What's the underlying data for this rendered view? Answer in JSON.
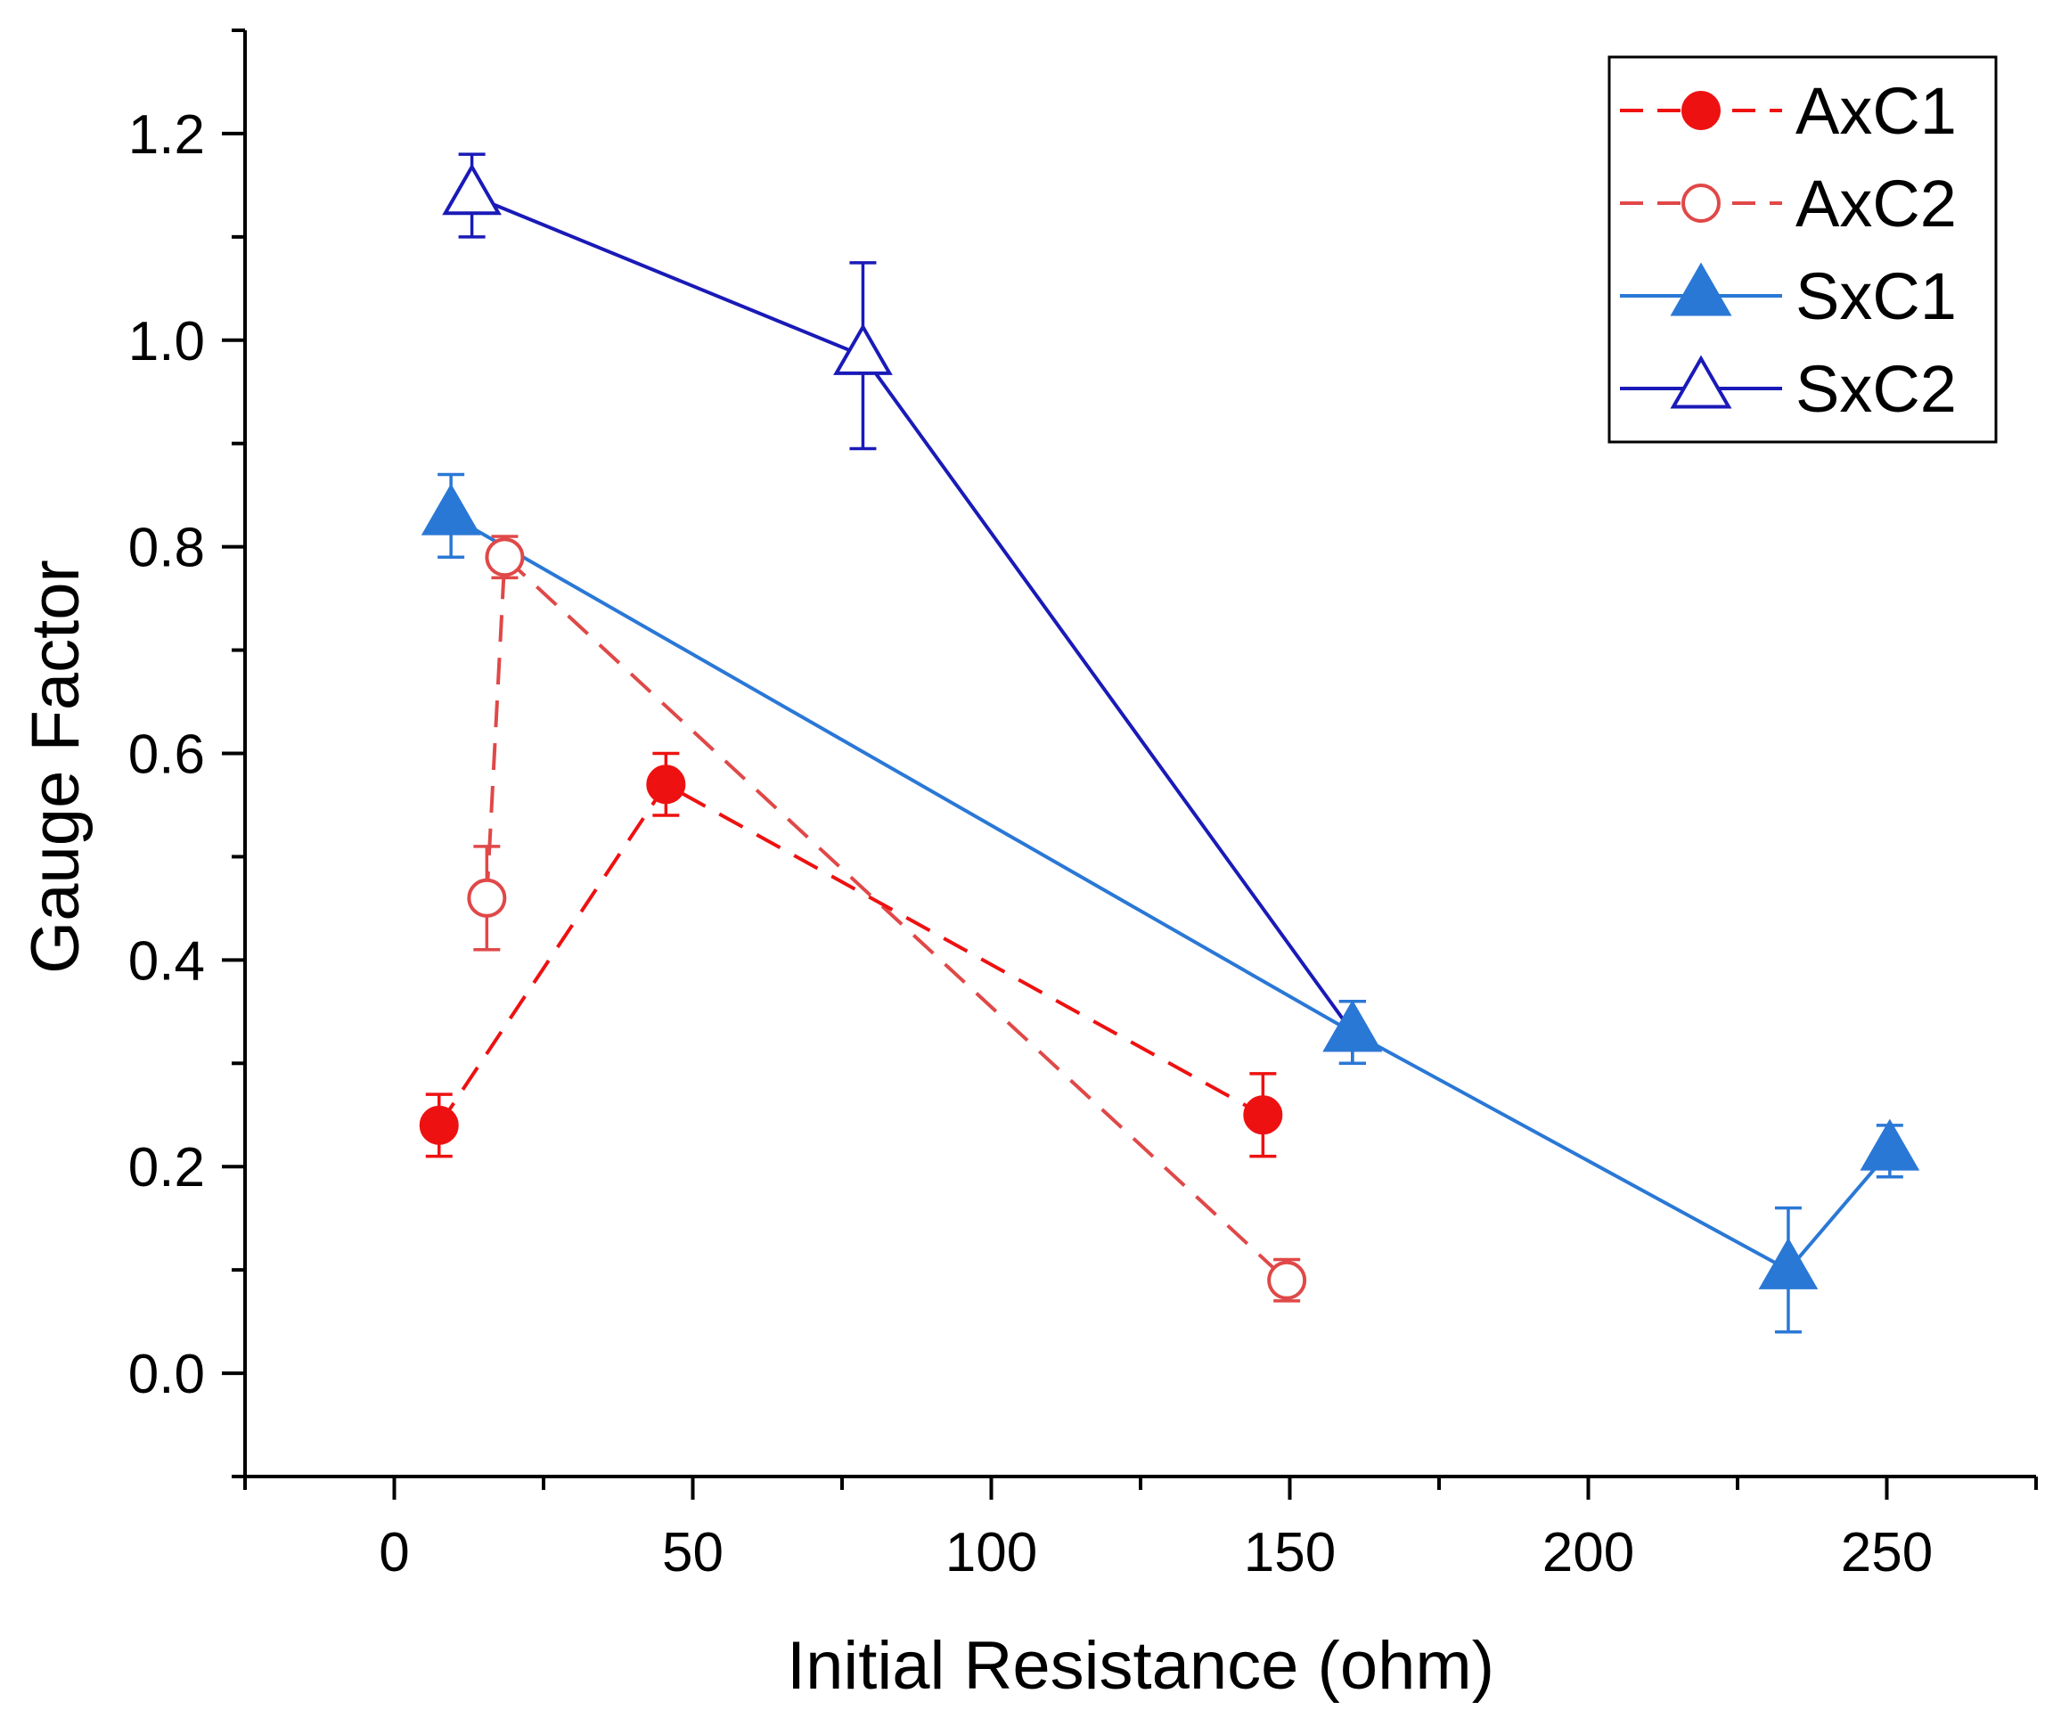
{
  "chart_data": {
    "type": "line",
    "title": "",
    "xlabel": "Initial Resistance (ohm)",
    "ylabel": "Gauge Factor",
    "xlim": [
      -25,
      275
    ],
    "ylim": [
      -0.1,
      1.3
    ],
    "x_ticks": [
      0,
      50,
      100,
      150,
      200,
      250
    ],
    "x_tick_labels": [
      "0",
      "50",
      "100",
      "150",
      "200",
      "250"
    ],
    "x_minor_ticks": [
      -25,
      25,
      75,
      125,
      175,
      225,
      275
    ],
    "y_ticks": [
      0.0,
      0.2,
      0.4,
      0.6,
      0.8,
      1.0,
      1.2
    ],
    "y_tick_labels": [
      "0.0",
      "0.2",
      "0.4",
      "0.6",
      "0.8",
      "1.0",
      "1.2"
    ],
    "y_minor_ticks": [
      -0.1,
      0.1,
      0.3,
      0.5,
      0.7,
      0.9,
      1.1,
      1.3
    ],
    "grid": false,
    "legend_position": "top-right",
    "series": [
      {
        "name": "AxC1",
        "color": "#ee1111",
        "line_style": "dashed",
        "marker": "circle",
        "marker_fill": "filled",
        "x": [
          7.5,
          45.5,
          145.5
        ],
        "y": [
          0.24,
          0.57,
          0.25
        ],
        "err_low": [
          0.03,
          0.03,
          0.04
        ],
        "err_high": [
          0.03,
          0.03,
          0.04
        ]
      },
      {
        "name": "AxC2",
        "color": "#e04848",
        "line_style": "dashed",
        "marker": "circle",
        "marker_fill": "open",
        "x": [
          15.5,
          18.5,
          149.5
        ],
        "y": [
          0.46,
          0.79,
          0.09
        ],
        "err_low": [
          0.05,
          0.02,
          0.02
        ],
        "err_high": [
          0.05,
          0.02,
          0.02
        ]
      },
      {
        "name": "SxC1",
        "color": "#2a78d6",
        "line_style": "solid",
        "marker": "triangle",
        "marker_fill": "filled",
        "x": [
          9.5,
          160.5,
          233.5,
          250.5
        ],
        "y": [
          0.83,
          0.33,
          0.1,
          0.215
        ],
        "err_low": [
          0.04,
          0.03,
          0.06,
          0.025
        ],
        "err_high": [
          0.04,
          0.03,
          0.06,
          0.025
        ]
      },
      {
        "name": "SxC2",
        "color": "#1a1ab8",
        "line_style": "solid",
        "marker": "triangle",
        "marker_fill": "open",
        "x": [
          13,
          78.5,
          160.5
        ],
        "y": [
          1.14,
          0.985,
          0.33
        ],
        "err_low": [
          0.04,
          0.09,
          0.03
        ],
        "err_high": [
          0.04,
          0.09,
          0.03
        ]
      }
    ]
  }
}
